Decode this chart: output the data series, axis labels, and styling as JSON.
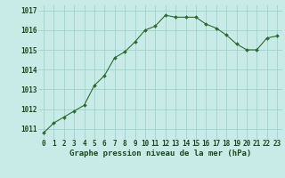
{
  "x": [
    0,
    1,
    2,
    3,
    4,
    5,
    6,
    7,
    8,
    9,
    10,
    11,
    12,
    13,
    14,
    15,
    16,
    17,
    18,
    19,
    20,
    21,
    22,
    23
  ],
  "y": [
    1010.8,
    1011.3,
    1011.6,
    1011.9,
    1012.2,
    1013.2,
    1013.7,
    1014.6,
    1014.9,
    1015.4,
    1016.0,
    1016.2,
    1016.75,
    1016.65,
    1016.65,
    1016.65,
    1016.3,
    1016.1,
    1015.75,
    1015.3,
    1015.0,
    1015.0,
    1015.6,
    1015.7
  ],
  "line_color": "#2d6a2d",
  "marker_color": "#2d6a2d",
  "bg_color": "#c8ebe8",
  "grid_color": "#96cdc8",
  "xlabel": "Graphe pression niveau de la mer (hPa)",
  "ylim_min": 1010.5,
  "ylim_max": 1017.25,
  "xlim_min": -0.5,
  "xlim_max": 23.5,
  "yticks": [
    1011,
    1012,
    1013,
    1014,
    1015,
    1016,
    1017
  ],
  "xticks": [
    0,
    1,
    2,
    3,
    4,
    5,
    6,
    7,
    8,
    9,
    10,
    11,
    12,
    13,
    14,
    15,
    16,
    17,
    18,
    19,
    20,
    21,
    22,
    23
  ],
  "font_color": "#1a4a1a",
  "xlabel_fontsize": 6.5,
  "tick_fontsize": 5.5
}
